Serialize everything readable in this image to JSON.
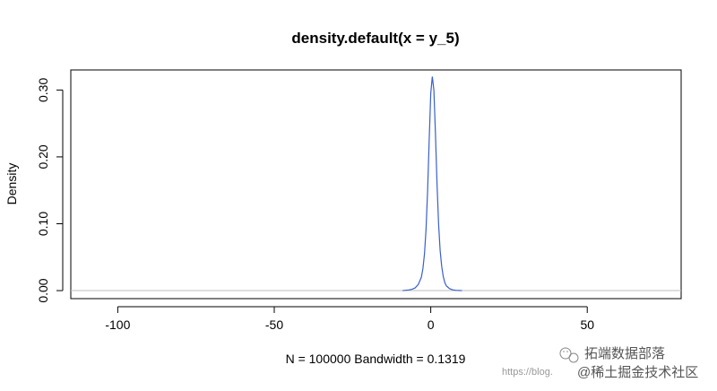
{
  "chart_data": {
    "type": "line",
    "title": "density.default(x = y_5)",
    "xlabel": "N = 100000   Bandwidth = 0.1319",
    "ylabel": "Density",
    "xlim": [
      -115,
      80
    ],
    "ylim": [
      -0.012,
      0.33
    ],
    "x_ticks": [
      -100,
      -50,
      0,
      50
    ],
    "y_ticks": [
      0.0,
      0.1,
      0.2,
      0.3
    ],
    "x_tick_labels": [
      "-100",
      "-50",
      "0",
      "50"
    ],
    "y_tick_labels": [
      "0.00",
      "0.10",
      "0.20",
      "0.30"
    ],
    "baseline": 0,
    "grid": false,
    "series": [
      {
        "x": [
          -9,
          -8,
          -7,
          -6,
          -5,
          -4,
          -3,
          -2.5,
          -2,
          -1.5,
          -1,
          -0.5,
          0,
          0.5,
          1,
          1.5,
          2,
          2.5,
          3,
          3.5,
          4,
          4.5,
          5,
          6,
          7,
          8,
          9,
          10
        ],
        "y": [
          0.0,
          0.0005,
          0.001,
          0.002,
          0.004,
          0.009,
          0.02,
          0.033,
          0.055,
          0.092,
          0.15,
          0.225,
          0.295,
          0.32,
          0.3,
          0.235,
          0.16,
          0.1,
          0.06,
          0.036,
          0.021,
          0.012,
          0.007,
          0.003,
          0.0012,
          0.0005,
          0.0002,
          0.0
        ],
        "color": "#3a5fcd"
      }
    ],
    "colors": {
      "axis": "#000000",
      "baseline": "#bebebe",
      "line": "#3a5fcd"
    }
  },
  "watermark": {
    "brand": "拓端数据部落",
    "community": "@稀土掘金技术社区",
    "url_fragment": "https://blog.",
    "icon": "wechat-icon"
  }
}
